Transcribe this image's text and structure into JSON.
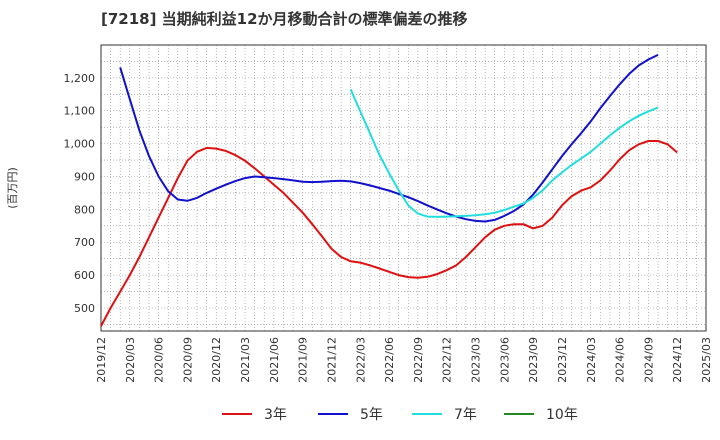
{
  "chart_data": {
    "type": "line",
    "title": "[7218]  当期純利益12か月移動合計の標準偏差の推移",
    "ylabel": "(百万円)",
    "xlabel": "",
    "ylim": [
      430,
      1300
    ],
    "yticks": [
      500,
      600,
      700,
      800,
      900,
      1000,
      1100,
      1200
    ],
    "ytick_labels": [
      "500",
      "600",
      "700",
      "800",
      "900",
      "1,000",
      "1,100",
      "1,200"
    ],
    "x_ticks": [
      "2019/12",
      "2020/03",
      "2020/06",
      "2020/09",
      "2020/12",
      "2021/03",
      "2021/06",
      "2021/09",
      "2021/12",
      "2022/03",
      "2022/06",
      "2022/09",
      "2022/12",
      "2023/03",
      "2023/06",
      "2023/09",
      "2023/12",
      "2024/03",
      "2024/06",
      "2024/09",
      "2024/12",
      "2025/03"
    ],
    "grid": true,
    "legend_position": "bottom",
    "series": [
      {
        "name": "3年",
        "color": "#dd1111",
        "start": "2019/12",
        "values": [
          445,
          500,
          550,
          600,
          655,
          715,
          775,
          835,
          895,
          948,
          975,
          987,
          985,
          978,
          965,
          948,
          925,
          900,
          875,
          850,
          820,
          790,
          755,
          718,
          680,
          655,
          642,
          638,
          630,
          620,
          610,
          600,
          594,
          592,
          595,
          603,
          615,
          630,
          655,
          685,
          715,
          738,
          750,
          755,
          755,
          742,
          750,
          775,
          812,
          840,
          857,
          867,
          888,
          918,
          952,
          980,
          998,
          1008,
          1008,
          998,
          973
        ]
      },
      {
        "name": "5年",
        "color": "#1111cc",
        "start": "2020/02",
        "values": [
          1232,
          1135,
          1040,
          962,
          900,
          855,
          830,
          826,
          835,
          850,
          863,
          875,
          886,
          895,
          900,
          898,
          895,
          892,
          888,
          884,
          883,
          884,
          886,
          887,
          885,
          880,
          873,
          865,
          857,
          847,
          837,
          825,
          812,
          800,
          788,
          778,
          770,
          765,
          763,
          768,
          780,
          795,
          815,
          845,
          882,
          922,
          962,
          998,
          1032,
          1068,
          1108,
          1145,
          1180,
          1212,
          1238,
          1256,
          1270
        ]
      },
      {
        "name": "7年",
        "color": "#22dddd",
        "start": "2022/02",
        "values": [
          1165,
          1098,
          1032,
          965,
          910,
          858,
          812,
          787,
          778,
          777,
          778,
          779,
          780,
          782,
          785,
          790,
          798,
          808,
          818,
          835,
          858,
          888,
          912,
          935,
          955,
          975,
          1000,
          1025,
          1048,
          1068,
          1085,
          1098,
          1110
        ]
      },
      {
        "name": "10年",
        "color": "#228822",
        "start": "2024/12",
        "values": []
      }
    ]
  }
}
